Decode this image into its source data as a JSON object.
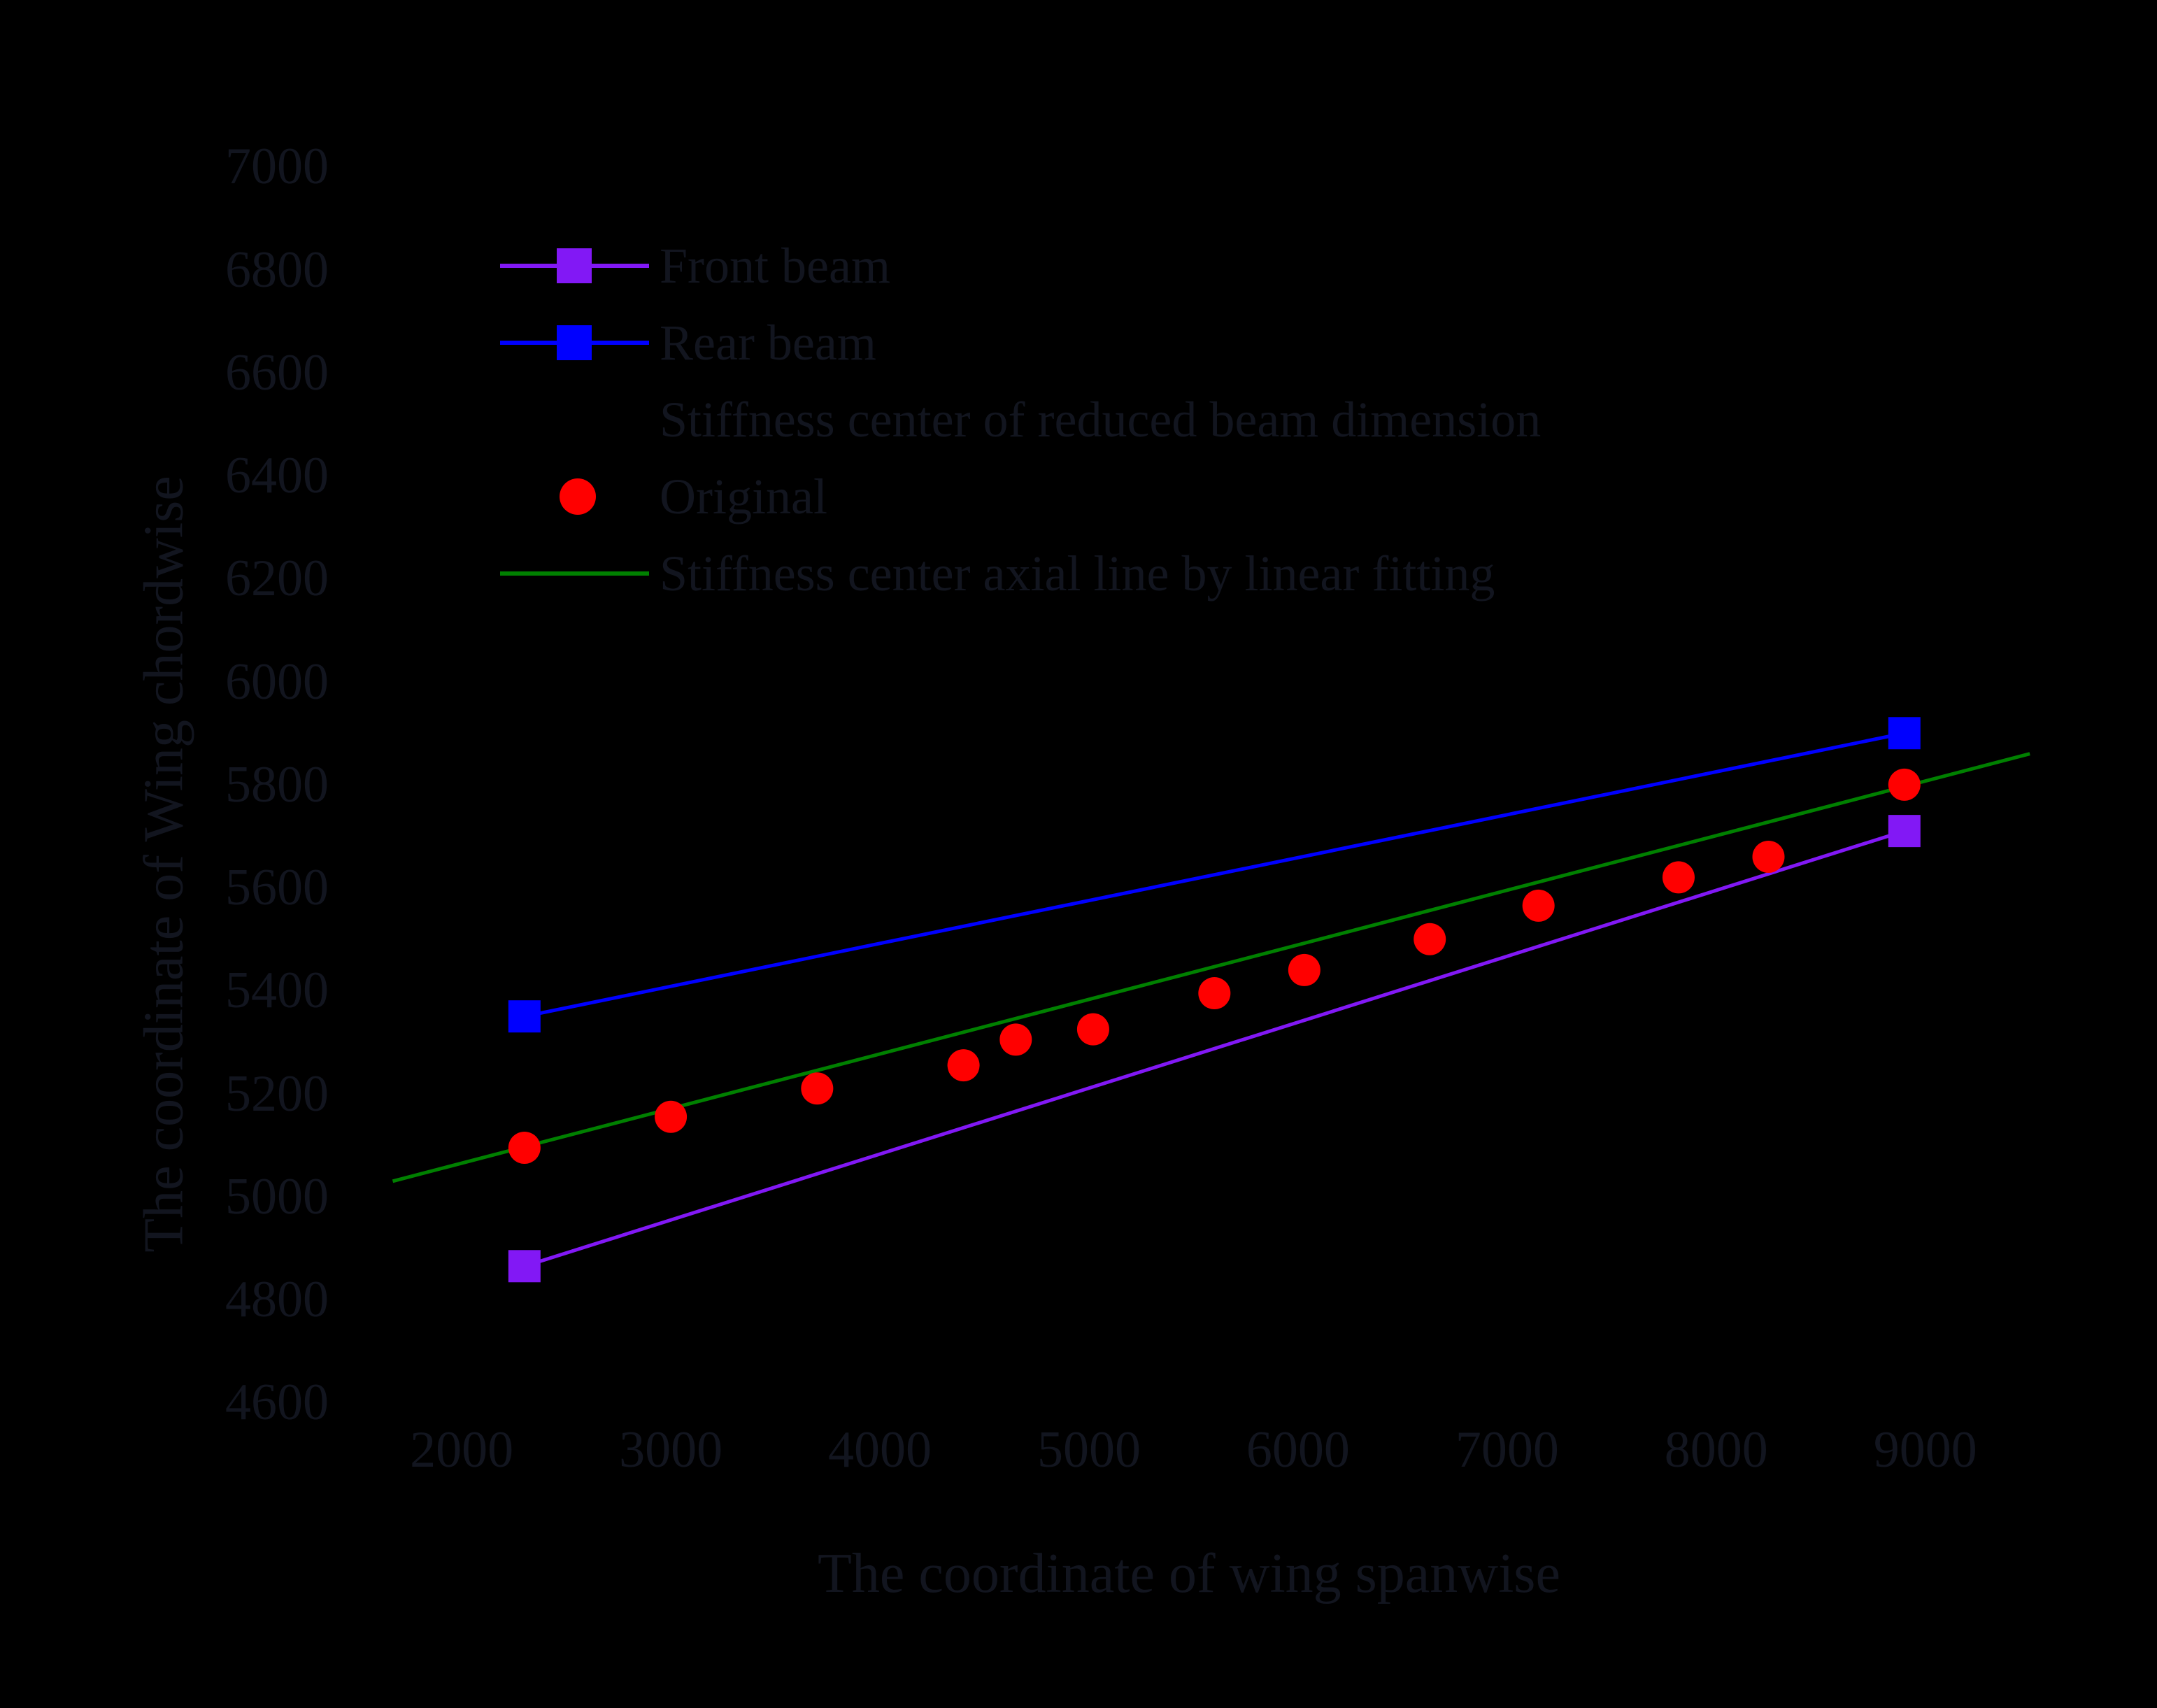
{
  "figure": {
    "background": "#000000",
    "text_color": "#12151f"
  },
  "legend": {
    "entries": [
      {
        "id": "front-beam",
        "label": "Front beam",
        "marker": "line-square",
        "color": "#8218F5"
      },
      {
        "id": "rear-beam",
        "label": "Rear beam",
        "marker": "line-square",
        "color": "#0000FF"
      },
      {
        "id": "stiffness-center-reduced",
        "label": "Stiffness center of reduced beam dimension",
        "marker": "none",
        "color": "#000000"
      },
      {
        "id": "original",
        "label": "Original",
        "marker": "circle",
        "color": "#FF0000"
      },
      {
        "id": "stiffness-center-axial",
        "label": "Stiffness center axial line by linear fitting",
        "marker": "line",
        "color": "#008000"
      }
    ]
  },
  "chart_data": {
    "type": "scatter",
    "title": "",
    "xlabel": "The coordinate of wing spanwise",
    "ylabel": "The coordinate of Wing chordwise",
    "xlim": [
      1665,
      9660
    ],
    "ylim": [
      4553,
      7120
    ],
    "x_ticks": [
      2000,
      3000,
      4000,
      5000,
      6000,
      7000,
      8000,
      9000
    ],
    "y_ticks": [
      4600,
      4800,
      5000,
      5200,
      5400,
      5600,
      5800,
      6000,
      6200,
      6400,
      6600,
      6800,
      7000
    ],
    "grid": false,
    "legend_position": "upper left",
    "series": [
      {
        "name": "Front beam",
        "draw": "line+marker",
        "marker": "square",
        "color": "#8218F5",
        "points": [
          [
            2300,
            4865
          ],
          [
            8900,
            5710
          ]
        ]
      },
      {
        "name": "Rear beam",
        "draw": "line+marker",
        "marker": "square",
        "color": "#0000FF",
        "points": [
          [
            2300,
            5350
          ],
          [
            8900,
            5900
          ]
        ]
      },
      {
        "name": "Stiffness center axial line by linear fitting",
        "draw": "line",
        "marker": "none",
        "color": "#008000",
        "points": [
          [
            1670,
            5030
          ],
          [
            9500,
            5860
          ]
        ]
      },
      {
        "name": "Original",
        "draw": "marker",
        "marker": "circle",
        "color": "#FF0000",
        "points": [
          [
            2300,
            5095
          ],
          [
            3000,
            5155
          ],
          [
            3700,
            5210
          ],
          [
            4400,
            5255
          ],
          [
            4650,
            5305
          ],
          [
            5020,
            5325
          ],
          [
            5600,
            5395
          ],
          [
            6030,
            5440
          ],
          [
            6630,
            5500
          ],
          [
            7150,
            5565
          ],
          [
            7820,
            5620
          ],
          [
            8250,
            5660
          ],
          [
            8900,
            5800
          ]
        ]
      }
    ]
  }
}
